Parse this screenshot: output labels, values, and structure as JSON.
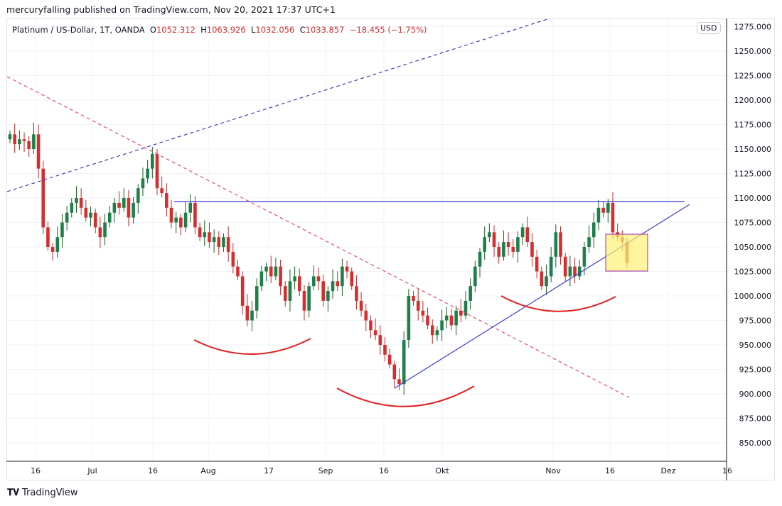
{
  "header": {
    "published": "mercuryfalling published on TradingView.com, Nov 20, 2021 17:37 UTC+1"
  },
  "legend": {
    "symbol": "Platinum / US-Dollar, 1T, OANDA",
    "o_label": "O",
    "o": "1052.312",
    "h_label": "H",
    "h": "1063.926",
    "l_label": "L",
    "l": "1032.056",
    "c_label": "C",
    "c": "1033.857",
    "change": "−18.455 (−1.75%)"
  },
  "currency": "USD",
  "footer": {
    "brand": "TradingView"
  },
  "colors": {
    "up": "#26a69a",
    "down": "#ef5350",
    "up_dark": "#1b5e20",
    "down_dark": "#c62828"
  },
  "chart_data": {
    "type": "candlestick",
    "title": "Platinum / US-Dollar, 1T, OANDA",
    "ylim": [
      830,
      1280
    ],
    "y_ticks": [
      "1275.000",
      "1250.000",
      "1225.000",
      "1200.000",
      "1175.000",
      "1150.000",
      "1125.000",
      "1100.000",
      "1075.000",
      "1050.000",
      "1025.000",
      "1000.000",
      "975.000",
      "950.000",
      "925.000",
      "900.000",
      "875.000",
      "850.000"
    ],
    "x_ticks": [
      "16",
      "Jul",
      "16",
      "Aug",
      "17",
      "Sep",
      "16",
      "Okt",
      "Nov",
      "16",
      "Dez",
      "16"
    ],
    "first_open": 1160,
    "closes": [
      1165,
      1155,
      1160,
      1158,
      1150,
      1165,
      1130,
      1070,
      1050,
      1045,
      1060,
      1075,
      1085,
      1095,
      1100,
      1090,
      1080,
      1085,
      1070,
      1060,
      1075,
      1085,
      1095,
      1090,
      1100,
      1080,
      1095,
      1110,
      1120,
      1130,
      1145,
      1110,
      1105,
      1090,
      1075,
      1080,
      1070,
      1085,
      1095,
      1070,
      1060,
      1065,
      1055,
      1060,
      1050,
      1060,
      1045,
      1030,
      1020,
      990,
      975,
      985,
      1010,
      1025,
      1030,
      1020,
      1030,
      1010,
      995,
      1015,
      1020,
      1005,
      985,
      1010,
      1020,
      1015,
      995,
      1005,
      1015,
      1010,
      1030,
      1025,
      1010,
      995,
      985,
      975,
      965,
      960,
      950,
      940,
      930,
      915,
      910,
      955,
      1000,
      995,
      985,
      980,
      970,
      960,
      965,
      975,
      980,
      970,
      985,
      980,
      995,
      1010,
      1030,
      1045,
      1060,
      1065,
      1050,
      1040,
      1055,
      1050,
      1045,
      1060,
      1070,
      1055,
      1040,
      1025,
      1010,
      1020,
      1040,
      1065,
      1040,
      1020,
      1030,
      1020,
      1030,
      1050,
      1060,
      1075,
      1090,
      1085,
      1095,
      1065,
      1060,
      1055,
      1033.857
    ]
  }
}
